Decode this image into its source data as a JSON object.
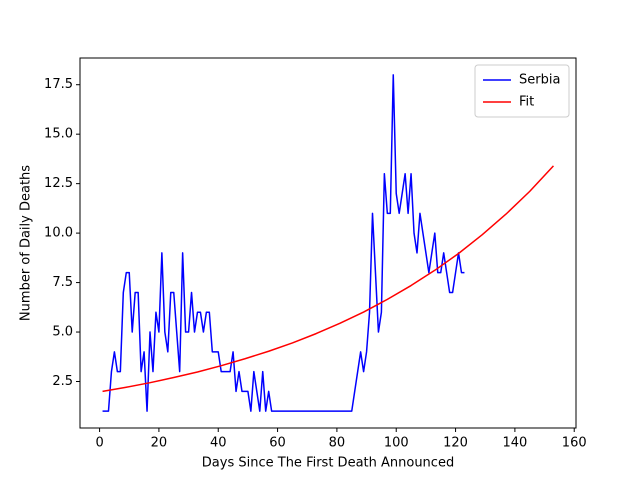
{
  "chart_data": {
    "type": "line",
    "x_label": "Days Since The First Death Announced",
    "y_label": "Number of Daily Deaths",
    "series": [
      {
        "name": "Serbia",
        "color": "#0000ff",
        "x": [
          1,
          2,
          3,
          4,
          5,
          6,
          7,
          8,
          9,
          10,
          11,
          12,
          13,
          14,
          15,
          16,
          17,
          18,
          19,
          20,
          21,
          22,
          23,
          24,
          25,
          26,
          27,
          28,
          29,
          30,
          31,
          32,
          33,
          34,
          35,
          36,
          37,
          38,
          39,
          40,
          41,
          42,
          43,
          44,
          45,
          46,
          47,
          48,
          49,
          50,
          51,
          52,
          53,
          54,
          55,
          56,
          57,
          58,
          59,
          60,
          61,
          62,
          63,
          64,
          65,
          66,
          67,
          68,
          69,
          70,
          71,
          72,
          73,
          74,
          75,
          76,
          77,
          78,
          79,
          80,
          81,
          82,
          83,
          84,
          85,
          86,
          87,
          88,
          89,
          90,
          91,
          92,
          93,
          94,
          95,
          96,
          97,
          98,
          99,
          100,
          101,
          102,
          103,
          104,
          105,
          106,
          107,
          108,
          109,
          110,
          111,
          112,
          113,
          114,
          115,
          116,
          117,
          118,
          119,
          120,
          121,
          122,
          123
        ],
        "values": [
          1,
          1,
          1,
          3,
          4,
          3,
          3,
          7,
          8,
          8,
          5,
          7,
          7,
          3,
          4,
          1,
          5,
          3,
          6,
          5,
          9,
          5,
          4,
          7,
          7,
          5,
          3,
          9,
          5,
          5,
          7,
          5,
          6,
          6,
          5,
          6,
          6,
          4,
          4,
          4,
          3,
          3,
          3,
          3,
          4,
          2,
          3,
          2,
          2,
          2,
          1,
          3,
          2,
          1,
          3,
          1,
          2,
          1,
          1,
          1,
          1,
          1,
          1,
          1,
          1,
          1,
          1,
          1,
          1,
          1,
          1,
          1,
          1,
          1,
          1,
          1,
          1,
          1,
          1,
          1,
          1,
          1,
          1,
          1,
          1,
          2,
          3,
          4,
          3,
          4,
          6,
          11,
          8,
          5,
          6,
          13,
          11,
          11,
          18,
          12,
          11,
          12,
          13,
          11,
          13,
          10,
          9,
          11,
          10,
          9,
          8,
          9,
          10,
          8,
          8,
          9,
          8,
          7,
          7,
          8,
          9,
          8,
          8
        ]
      },
      {
        "name": "Fit",
        "color": "#ff0000",
        "x": [
          1,
          9,
          17,
          25,
          33,
          41,
          49,
          57,
          65,
          73,
          81,
          89,
          97,
          105,
          113,
          121,
          129,
          137,
          145,
          153
        ],
        "values": [
          2.0,
          2.21,
          2.44,
          2.7,
          2.98,
          3.3,
          3.65,
          4.03,
          4.45,
          4.92,
          5.44,
          6.01,
          6.65,
          7.35,
          8.12,
          8.97,
          9.92,
          10.96,
          12.11,
          13.4
        ]
      }
    ],
    "xlim": [
      -6.6,
      160.6
    ],
    "ylim": [
      0.15,
      18.85
    ],
    "xticks": [
      0,
      20,
      40,
      60,
      80,
      100,
      120,
      140,
      160
    ],
    "yticks": [
      2.5,
      {
        "value": 5,
        "label": "5.0"
      },
      7.5,
      {
        "value": 10,
        "label": "10.0"
      },
      12.5,
      {
        "value": 15,
        "label": "15.0"
      },
      17.5
    ],
    "legend": "upper right"
  }
}
